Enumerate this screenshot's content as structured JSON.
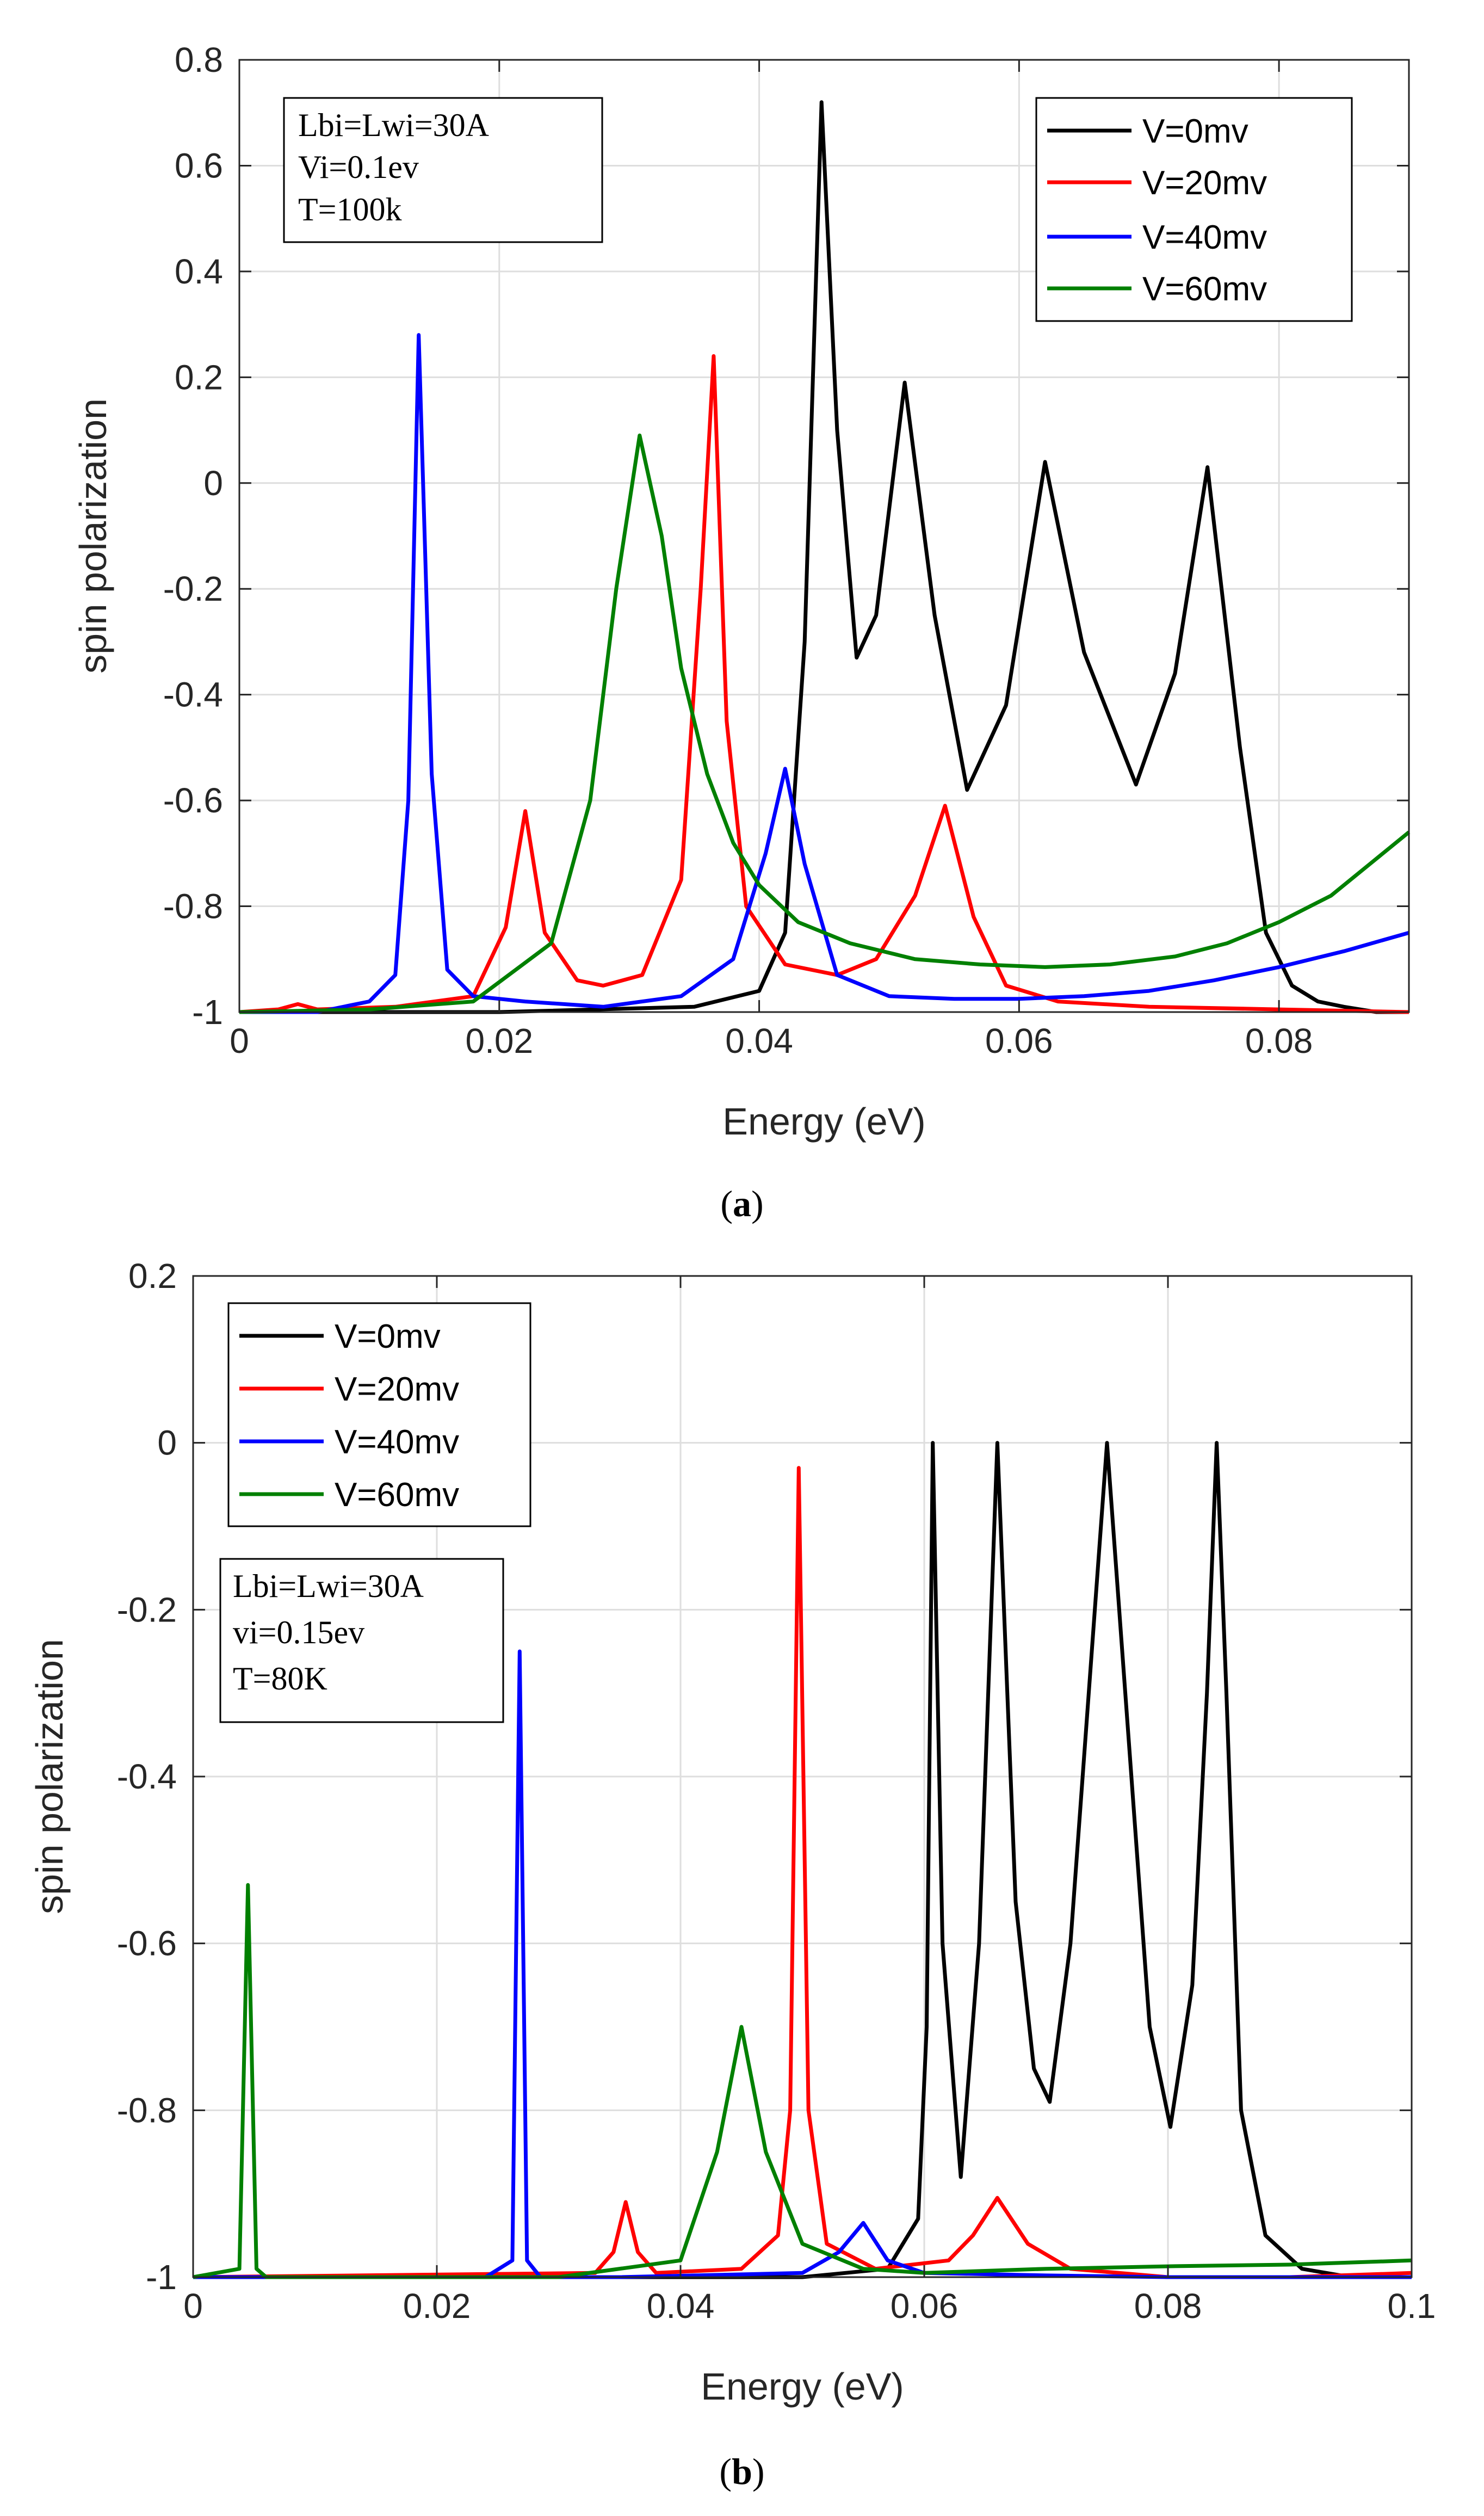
{
  "chart_data": [
    {
      "type": "line",
      "panel": "a",
      "caption": "a",
      "xlabel": "Energy (eV)",
      "ylabel": "spin polarization",
      "xlim": [
        0,
        0.09
      ],
      "ylim": [
        -1,
        0.8
      ],
      "xticks": [
        0,
        0.02,
        0.04,
        0.06,
        0.08
      ],
      "xtick_labels": [
        "0",
        "0.02",
        "0.04",
        "0.06",
        "0.08"
      ],
      "yticks": [
        0.8,
        0.6,
        0.4,
        0.2,
        0,
        -0.2,
        -0.4,
        -0.6,
        -0.8,
        -1
      ],
      "ytick_labels": [
        "0.8",
        "0.6",
        "0.4",
        "0.2",
        "0",
        "-0.2",
        "-0.4",
        "-0.6",
        "-0.8",
        "-1"
      ],
      "grid": true,
      "legend_position": "top-right",
      "annotation": [
        "Lbi=Lwi=30A",
        "Vi=0.1ev",
        "T=100k"
      ],
      "annotation_position": "top-left",
      "series": [
        {
          "name": "V=0mv",
          "color": "#000000",
          "x": [
            0,
            0.02,
            0.035,
            0.04,
            0.042,
            0.0435,
            0.0448,
            0.046,
            0.0475,
            0.049,
            0.0512,
            0.0535,
            0.056,
            0.059,
            0.062,
            0.065,
            0.069,
            0.072,
            0.0745,
            0.077,
            0.079,
            0.081,
            0.083,
            0.085,
            0.0875,
            0.09
          ],
          "y": [
            -1,
            -1,
            -0.99,
            -0.96,
            -0.85,
            -0.3,
            0.72,
            0.1,
            -0.33,
            -0.25,
            0.19,
            -0.25,
            -0.58,
            -0.42,
            0.04,
            -0.32,
            -0.57,
            -0.36,
            0.03,
            -0.5,
            -0.85,
            -0.95,
            -0.98,
            -0.99,
            -1,
            -1
          ]
        },
        {
          "name": "V=20mv",
          "color": "#ff0000",
          "x": [
            0,
            0.003,
            0.0045,
            0.006,
            0.012,
            0.018,
            0.0205,
            0.022,
            0.0235,
            0.026,
            0.028,
            0.031,
            0.034,
            0.0355,
            0.0365,
            0.0375,
            0.039,
            0.042,
            0.046,
            0.049,
            0.052,
            0.0543,
            0.0565,
            0.059,
            0.063,
            0.07,
            0.08,
            0.09
          ],
          "y": [
            -1,
            -0.995,
            -0.985,
            -0.995,
            -0.99,
            -0.97,
            -0.84,
            -0.62,
            -0.85,
            -0.94,
            -0.95,
            -0.93,
            -0.75,
            -0.2,
            0.24,
            -0.45,
            -0.8,
            -0.91,
            -0.93,
            -0.9,
            -0.78,
            -0.61,
            -0.82,
            -0.95,
            -0.98,
            -0.99,
            -0.995,
            -1
          ]
        },
        {
          "name": "V=40mv",
          "color": "#0000ff",
          "x": [
            0,
            0.006,
            0.01,
            0.012,
            0.013,
            0.0138,
            0.0148,
            0.016,
            0.018,
            0.022,
            0.028,
            0.034,
            0.038,
            0.0405,
            0.042,
            0.0435,
            0.046,
            0.05,
            0.055,
            0.06,
            0.065,
            0.07,
            0.075,
            0.08,
            0.085,
            0.09
          ],
          "y": [
            -1,
            -1,
            -0.98,
            -0.93,
            -0.6,
            0.28,
            -0.55,
            -0.92,
            -0.97,
            -0.98,
            -0.99,
            -0.97,
            -0.9,
            -0.7,
            -0.54,
            -0.72,
            -0.93,
            -0.97,
            -0.975,
            -0.975,
            -0.97,
            -0.96,
            -0.94,
            -0.915,
            -0.885,
            -0.85
          ]
        },
        {
          "name": "V=60mv",
          "color": "#008000",
          "x": [
            0,
            0.01,
            0.018,
            0.024,
            0.027,
            0.029,
            0.0308,
            0.0325,
            0.034,
            0.036,
            0.038,
            0.04,
            0.043,
            0.047,
            0.052,
            0.057,
            0.062,
            0.067,
            0.072,
            0.076,
            0.08,
            0.084,
            0.087,
            0.09
          ],
          "y": [
            -1,
            -0.995,
            -0.98,
            -0.87,
            -0.6,
            -0.2,
            0.09,
            -0.1,
            -0.35,
            -0.55,
            -0.68,
            -0.76,
            -0.83,
            -0.87,
            -0.9,
            -0.91,
            -0.915,
            -0.91,
            -0.895,
            -0.87,
            -0.83,
            -0.78,
            -0.72,
            -0.66
          ]
        }
      ]
    },
    {
      "type": "line",
      "panel": "b",
      "caption": "b",
      "xlabel": "Energy (eV)",
      "ylabel": "spin polarization",
      "xlim": [
        0,
        0.1
      ],
      "ylim": [
        -1,
        0.2
      ],
      "xticks": [
        0,
        0.02,
        0.04,
        0.06,
        0.08,
        0.1
      ],
      "xtick_labels": [
        "0",
        "0.02",
        "0.04",
        "0.06",
        "0.08",
        "0.1"
      ],
      "yticks": [
        0.2,
        0,
        -0.2,
        -0.4,
        -0.6,
        -0.8,
        -1
      ],
      "ytick_labels": [
        "0.2",
        "0",
        "-0.2",
        "-0.4",
        "-0.6",
        "-0.8",
        "-1"
      ],
      "grid": true,
      "legend_position": "top-left",
      "annotation": [
        "Lbi=Lwi=30A",
        "vi=0.15ev",
        "T=80K"
      ],
      "annotation_position": "upper-left",
      "series": [
        {
          "name": "V=0mv",
          "color": "#000000",
          "x": [
            0,
            0.05,
            0.057,
            0.0595,
            0.0602,
            0.0607,
            0.0615,
            0.063,
            0.0645,
            0.066,
            0.0675,
            0.069,
            0.0703,
            0.072,
            0.0735,
            0.075,
            0.0765,
            0.0785,
            0.0802,
            0.082,
            0.0832,
            0.084,
            0.0848,
            0.086,
            0.088,
            0.091,
            0.095,
            0.1
          ],
          "y": [
            -1,
            -1,
            -0.99,
            -0.93,
            -0.7,
            0,
            -0.6,
            -0.88,
            -0.6,
            0,
            -0.55,
            -0.75,
            -0.79,
            -0.6,
            -0.3,
            0,
            -0.3,
            -0.7,
            -0.82,
            -0.65,
            -0.3,
            0,
            -0.3,
            -0.8,
            -0.95,
            -0.99,
            -1,
            -1
          ]
        },
        {
          "name": "V=20mv",
          "color": "#ff0000",
          "x": [
            0,
            0.033,
            0.0345,
            0.0355,
            0.0365,
            0.038,
            0.045,
            0.048,
            0.049,
            0.0497,
            0.0505,
            0.052,
            0.056,
            0.062,
            0.064,
            0.066,
            0.0685,
            0.072,
            0.08,
            0.09,
            0.1
          ],
          "y": [
            -1,
            -0.995,
            -0.97,
            -0.91,
            -0.97,
            -0.995,
            -0.99,
            -0.95,
            -0.8,
            -0.03,
            -0.8,
            -0.96,
            -0.99,
            -0.98,
            -0.95,
            -0.905,
            -0.96,
            -0.99,
            -1,
            -1,
            -0.995
          ]
        },
        {
          "name": "V=40mv",
          "color": "#0000ff",
          "x": [
            0,
            0.024,
            0.0262,
            0.0268,
            0.0274,
            0.0285,
            0.035,
            0.05,
            0.053,
            0.055,
            0.057,
            0.06,
            0.07,
            0.08,
            0.09,
            0.1
          ],
          "y": [
            -1,
            -1,
            -0.98,
            -0.25,
            -0.98,
            -1,
            -1,
            -0.995,
            -0.97,
            -0.935,
            -0.98,
            -0.995,
            -0.998,
            -1,
            -1,
            -1
          ]
        },
        {
          "name": "V=60mv",
          "color": "#008000",
          "x": [
            0,
            0.0038,
            0.0045,
            0.0052,
            0.006,
            0.01,
            0.03,
            0.04,
            0.043,
            0.045,
            0.047,
            0.05,
            0.055,
            0.06,
            0.07,
            0.08,
            0.09,
            0.1
          ],
          "y": [
            -1,
            -0.99,
            -0.53,
            -0.99,
            -1,
            -1,
            -1,
            -0.98,
            -0.85,
            -0.7,
            -0.85,
            -0.96,
            -0.99,
            -0.995,
            -0.99,
            -0.987,
            -0.985,
            -0.98
          ]
        }
      ]
    }
  ]
}
